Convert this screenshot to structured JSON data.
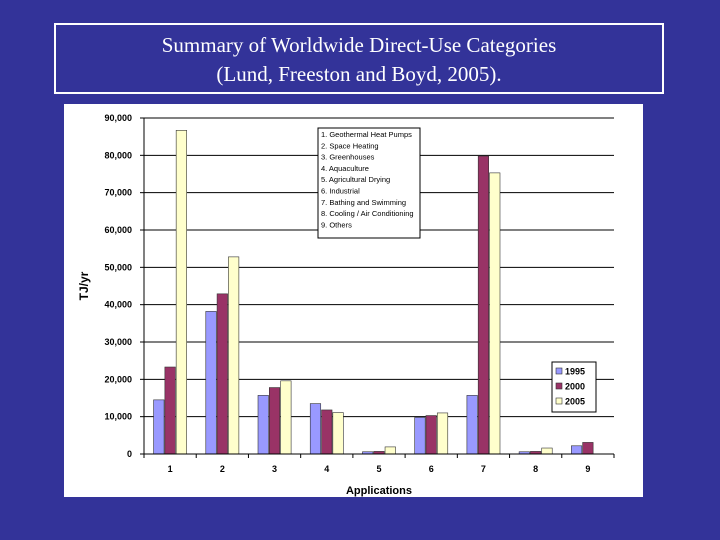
{
  "slide": {
    "title_line1": "Summary of Worldwide Direct-Use Categories",
    "title_line2": "(Lund, Freeston and Boyd, 2005)."
  },
  "colors": {
    "background": "#333399",
    "series_1995": "#9999ff",
    "series_2000": "#993366",
    "series_2005": "#ffffcc"
  },
  "chart_data": {
    "type": "bar",
    "categories": [
      "1",
      "2",
      "3",
      "4",
      "5",
      "6",
      "7",
      "8",
      "9"
    ],
    "series": [
      {
        "name": "1995",
        "values": [
          14500,
          38200,
          15700,
          13500,
          600,
          9800,
          15700,
          600,
          2200
        ]
      },
      {
        "name": "2000",
        "values": [
          23300,
          42900,
          17800,
          11800,
          700,
          10300,
          79800,
          700,
          3100
        ]
      },
      {
        "name": "2005",
        "values": [
          86700,
          52800,
          19600,
          11100,
          1900,
          11000,
          75300,
          1600,
          0
        ]
      }
    ],
    "ylabel": "TJ/yr",
    "xlabel": "Applications",
    "ylim": [
      0,
      90000
    ],
    "yticks": [
      0,
      10000,
      20000,
      30000,
      40000,
      50000,
      60000,
      70000,
      80000,
      90000
    ],
    "ytick_labels": [
      "0",
      "10,000",
      "20,000",
      "30,000",
      "40,000",
      "50,000",
      "60,000",
      "70,000",
      "80,000",
      "90,000"
    ],
    "grid": true,
    "legend_placement": "right",
    "category_key": [
      "1.  Geothermal Heat Pumps",
      "2.  Space Heating",
      "3.  Greenhouses",
      "4.  Aquaculture",
      "5.  Agricultural Drying",
      "6.  Industrial",
      "7.  Bathing and Swimming",
      "8.  Cooling / Air Conditioning",
      "9.  Others"
    ]
  }
}
